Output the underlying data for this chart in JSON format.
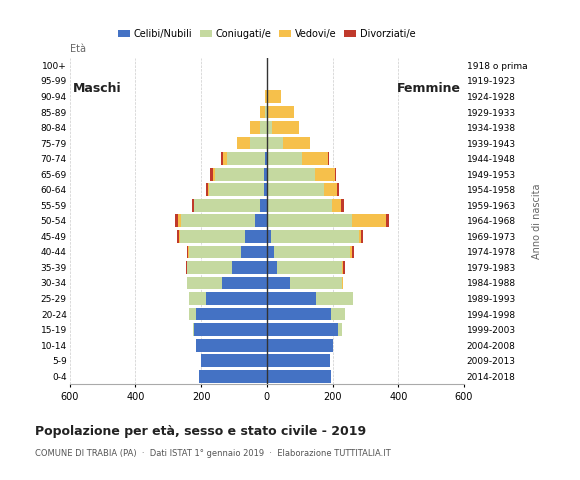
{
  "age_groups": [
    "0-4",
    "5-9",
    "10-14",
    "15-19",
    "20-24",
    "25-29",
    "30-34",
    "35-39",
    "40-44",
    "45-49",
    "50-54",
    "55-59",
    "60-64",
    "65-69",
    "70-74",
    "75-79",
    "80-84",
    "85-89",
    "90-94",
    "95-99",
    "100+"
  ],
  "birth_years": [
    "2014-2018",
    "2009-2013",
    "2004-2008",
    "1999-2003",
    "1994-1998",
    "1989-1993",
    "1984-1988",
    "1979-1983",
    "1974-1978",
    "1969-1973",
    "1964-1968",
    "1959-1963",
    "1954-1958",
    "1949-1953",
    "1944-1948",
    "1939-1943",
    "1934-1938",
    "1929-1933",
    "1924-1928",
    "1919-1923",
    "1918 o prima"
  ],
  "male_celibe": [
    205,
    200,
    215,
    220,
    215,
    185,
    135,
    105,
    80,
    65,
    35,
    20,
    10,
    8,
    5,
    0,
    0,
    0,
    0,
    0,
    0
  ],
  "male_coniugato": [
    0,
    0,
    0,
    5,
    22,
    52,
    108,
    138,
    158,
    200,
    225,
    200,
    165,
    150,
    115,
    50,
    20,
    5,
    0,
    0,
    0
  ],
  "male_vedovo": [
    0,
    0,
    0,
    0,
    0,
    0,
    0,
    0,
    2,
    3,
    10,
    3,
    3,
    5,
    12,
    42,
    30,
    15,
    5,
    0,
    0
  ],
  "male_divorziato": [
    0,
    0,
    0,
    0,
    0,
    0,
    0,
    3,
    4,
    6,
    9,
    6,
    6,
    10,
    6,
    0,
    0,
    0,
    0,
    0,
    0
  ],
  "female_celibe": [
    196,
    192,
    202,
    218,
    195,
    150,
    70,
    32,
    22,
    12,
    5,
    5,
    5,
    0,
    0,
    0,
    0,
    0,
    0,
    0,
    0
  ],
  "female_coniugato": [
    0,
    0,
    0,
    12,
    42,
    112,
    158,
    198,
    232,
    268,
    255,
    193,
    168,
    148,
    108,
    50,
    15,
    0,
    0,
    0,
    0
  ],
  "female_vedovo": [
    0,
    0,
    0,
    0,
    0,
    0,
    3,
    3,
    6,
    6,
    102,
    27,
    42,
    58,
    78,
    82,
    82,
    82,
    42,
    5,
    0
  ],
  "female_divorziato": [
    0,
    0,
    0,
    0,
    0,
    0,
    0,
    5,
    6,
    6,
    10,
    10,
    6,
    6,
    4,
    0,
    0,
    0,
    0,
    0,
    0
  ],
  "colors": {
    "celibe": "#4472c4",
    "coniugato": "#c5d9a0",
    "vedovo": "#f6c04b",
    "divorziato": "#c0392b"
  },
  "title": "Popolazione per età, sesso e stato civile - 2019",
  "subtitle": "COMUNE DI TRABIA (PA)  ·  Dati ISTAT 1° gennaio 2019  ·  Elaborazione TUTTITALIA.IT",
  "label_maschi": "Maschi",
  "label_femmine": "Femmine",
  "label_eta": "Età",
  "label_anno": "Anno di nascita",
  "xlim": 600,
  "bg_color": "#ffffff",
  "grid_color": "#cccccc",
  "bar_height": 0.82,
  "legend_labels": [
    "Celibi/Nubili",
    "Coniugati/e",
    "Vedovi/e",
    "Divorziati/e"
  ]
}
